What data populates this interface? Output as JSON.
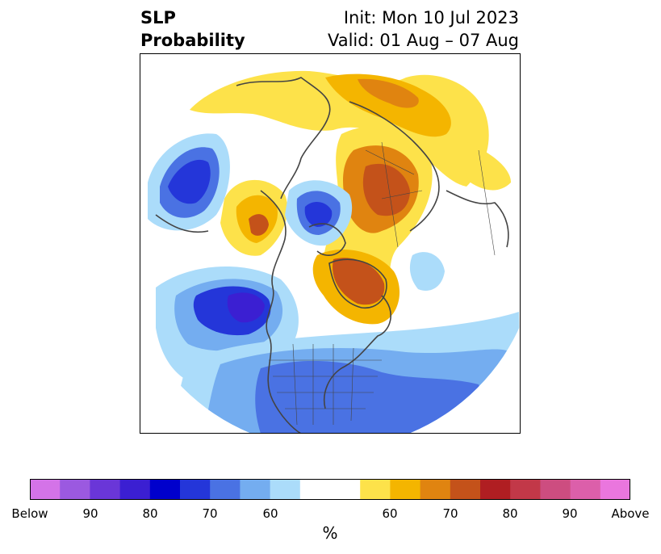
{
  "title": {
    "left_line1": "SLP",
    "left_line2": "Probability",
    "right_line1": "Init: Mon 10 Jul 2023",
    "right_line2": "Valid: 01 Aug – 07 Aug"
  },
  "map": {
    "projection": "north-polar-stereographic",
    "features": [
      "coastlines",
      "country-borders",
      "us-state-borders"
    ],
    "anomaly_regions": [
      {
        "name": "north-pacific-low",
        "category": "below",
        "peak_percent": 80
      },
      {
        "name": "hudson-bay-low",
        "category": "below",
        "peak_percent": 80
      },
      {
        "name": "conus-low",
        "category": "below",
        "peak_percent": 70
      },
      {
        "name": "greenland-high",
        "category": "above",
        "peak_percent": 70
      },
      {
        "name": "scandinavia-high",
        "category": "above",
        "peak_percent": 70
      },
      {
        "name": "alaska-high",
        "category": "above",
        "peak_percent": 70
      }
    ]
  },
  "colorbar": {
    "label": "%",
    "ticks": [
      "Below",
      "90",
      "80",
      "70",
      "60",
      "60",
      "70",
      "80",
      "90",
      "Above"
    ],
    "below_colors": [
      "#d473e8",
      "#9b59e0",
      "#6a36d8",
      "#3b1fd2",
      "#0000cc",
      "#2436d9",
      "#4a72e3",
      "#74adf0",
      "#abdcfa"
    ],
    "neutral_color": "#ffffff",
    "above_colors": [
      "#fde24a",
      "#f4b500",
      "#e08410",
      "#c4521a",
      "#b01e22",
      "#c23848",
      "#cd4d80",
      "#dc5faa",
      "#ea76de"
    ]
  }
}
